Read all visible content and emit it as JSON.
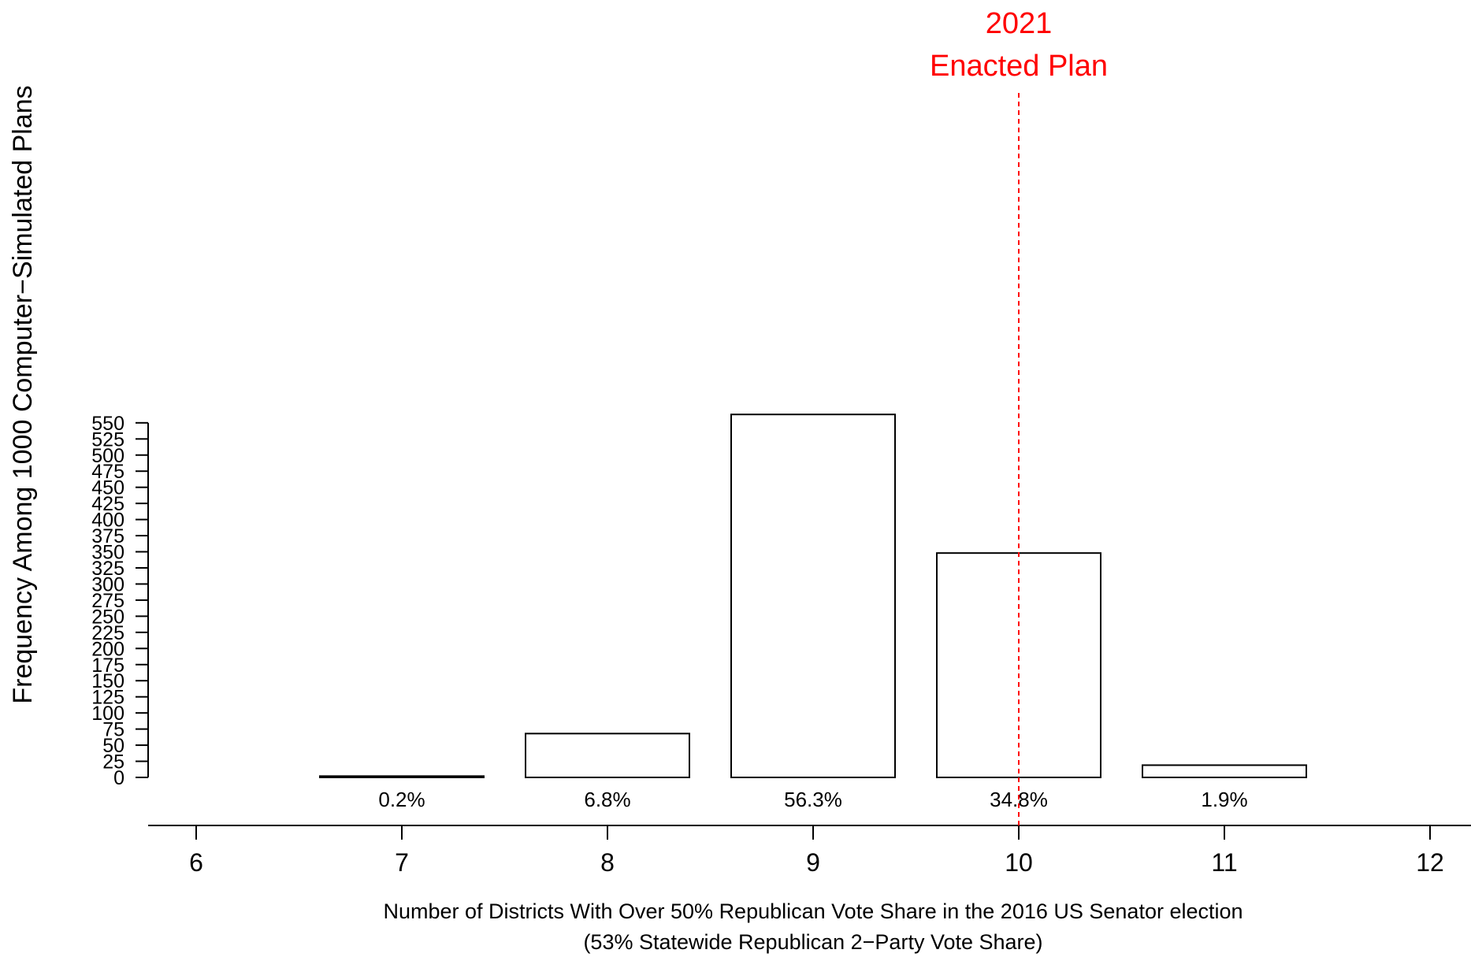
{
  "chart_data": {
    "type": "bar",
    "categories": [
      "7",
      "8",
      "9",
      "10",
      "11"
    ],
    "values": [
      2,
      68,
      563,
      348,
      19
    ],
    "bar_labels": [
      "0.2%",
      "6.8%",
      "56.3%",
      "34.8%",
      "1.9%"
    ],
    "xlabel": "Number of Districts With Over 50% Republican Vote Share in the 2016 US Senator election",
    "xlabel2": "(53% Statewide Republican 2−Party Vote Share)",
    "ylabel": "Frequency Among 1000 Computer−Simulated Plans",
    "ylim": [
      0,
      550
    ],
    "xlim": [
      6,
      12
    ],
    "yticks": [
      "0",
      "25",
      "50",
      "75",
      "100",
      "125",
      "150",
      "175",
      "200",
      "225",
      "250",
      "275",
      "300",
      "325",
      "350",
      "375",
      "400",
      "425",
      "450",
      "475",
      "500",
      "525",
      "550"
    ],
    "xticks": [
      "6",
      "7",
      "8",
      "9",
      "10",
      "11",
      "12"
    ],
    "grid": false,
    "annotation": {
      "x": 10,
      "line1": "2021",
      "line2": "Enacted Plan",
      "color": "#ff0000"
    }
  }
}
